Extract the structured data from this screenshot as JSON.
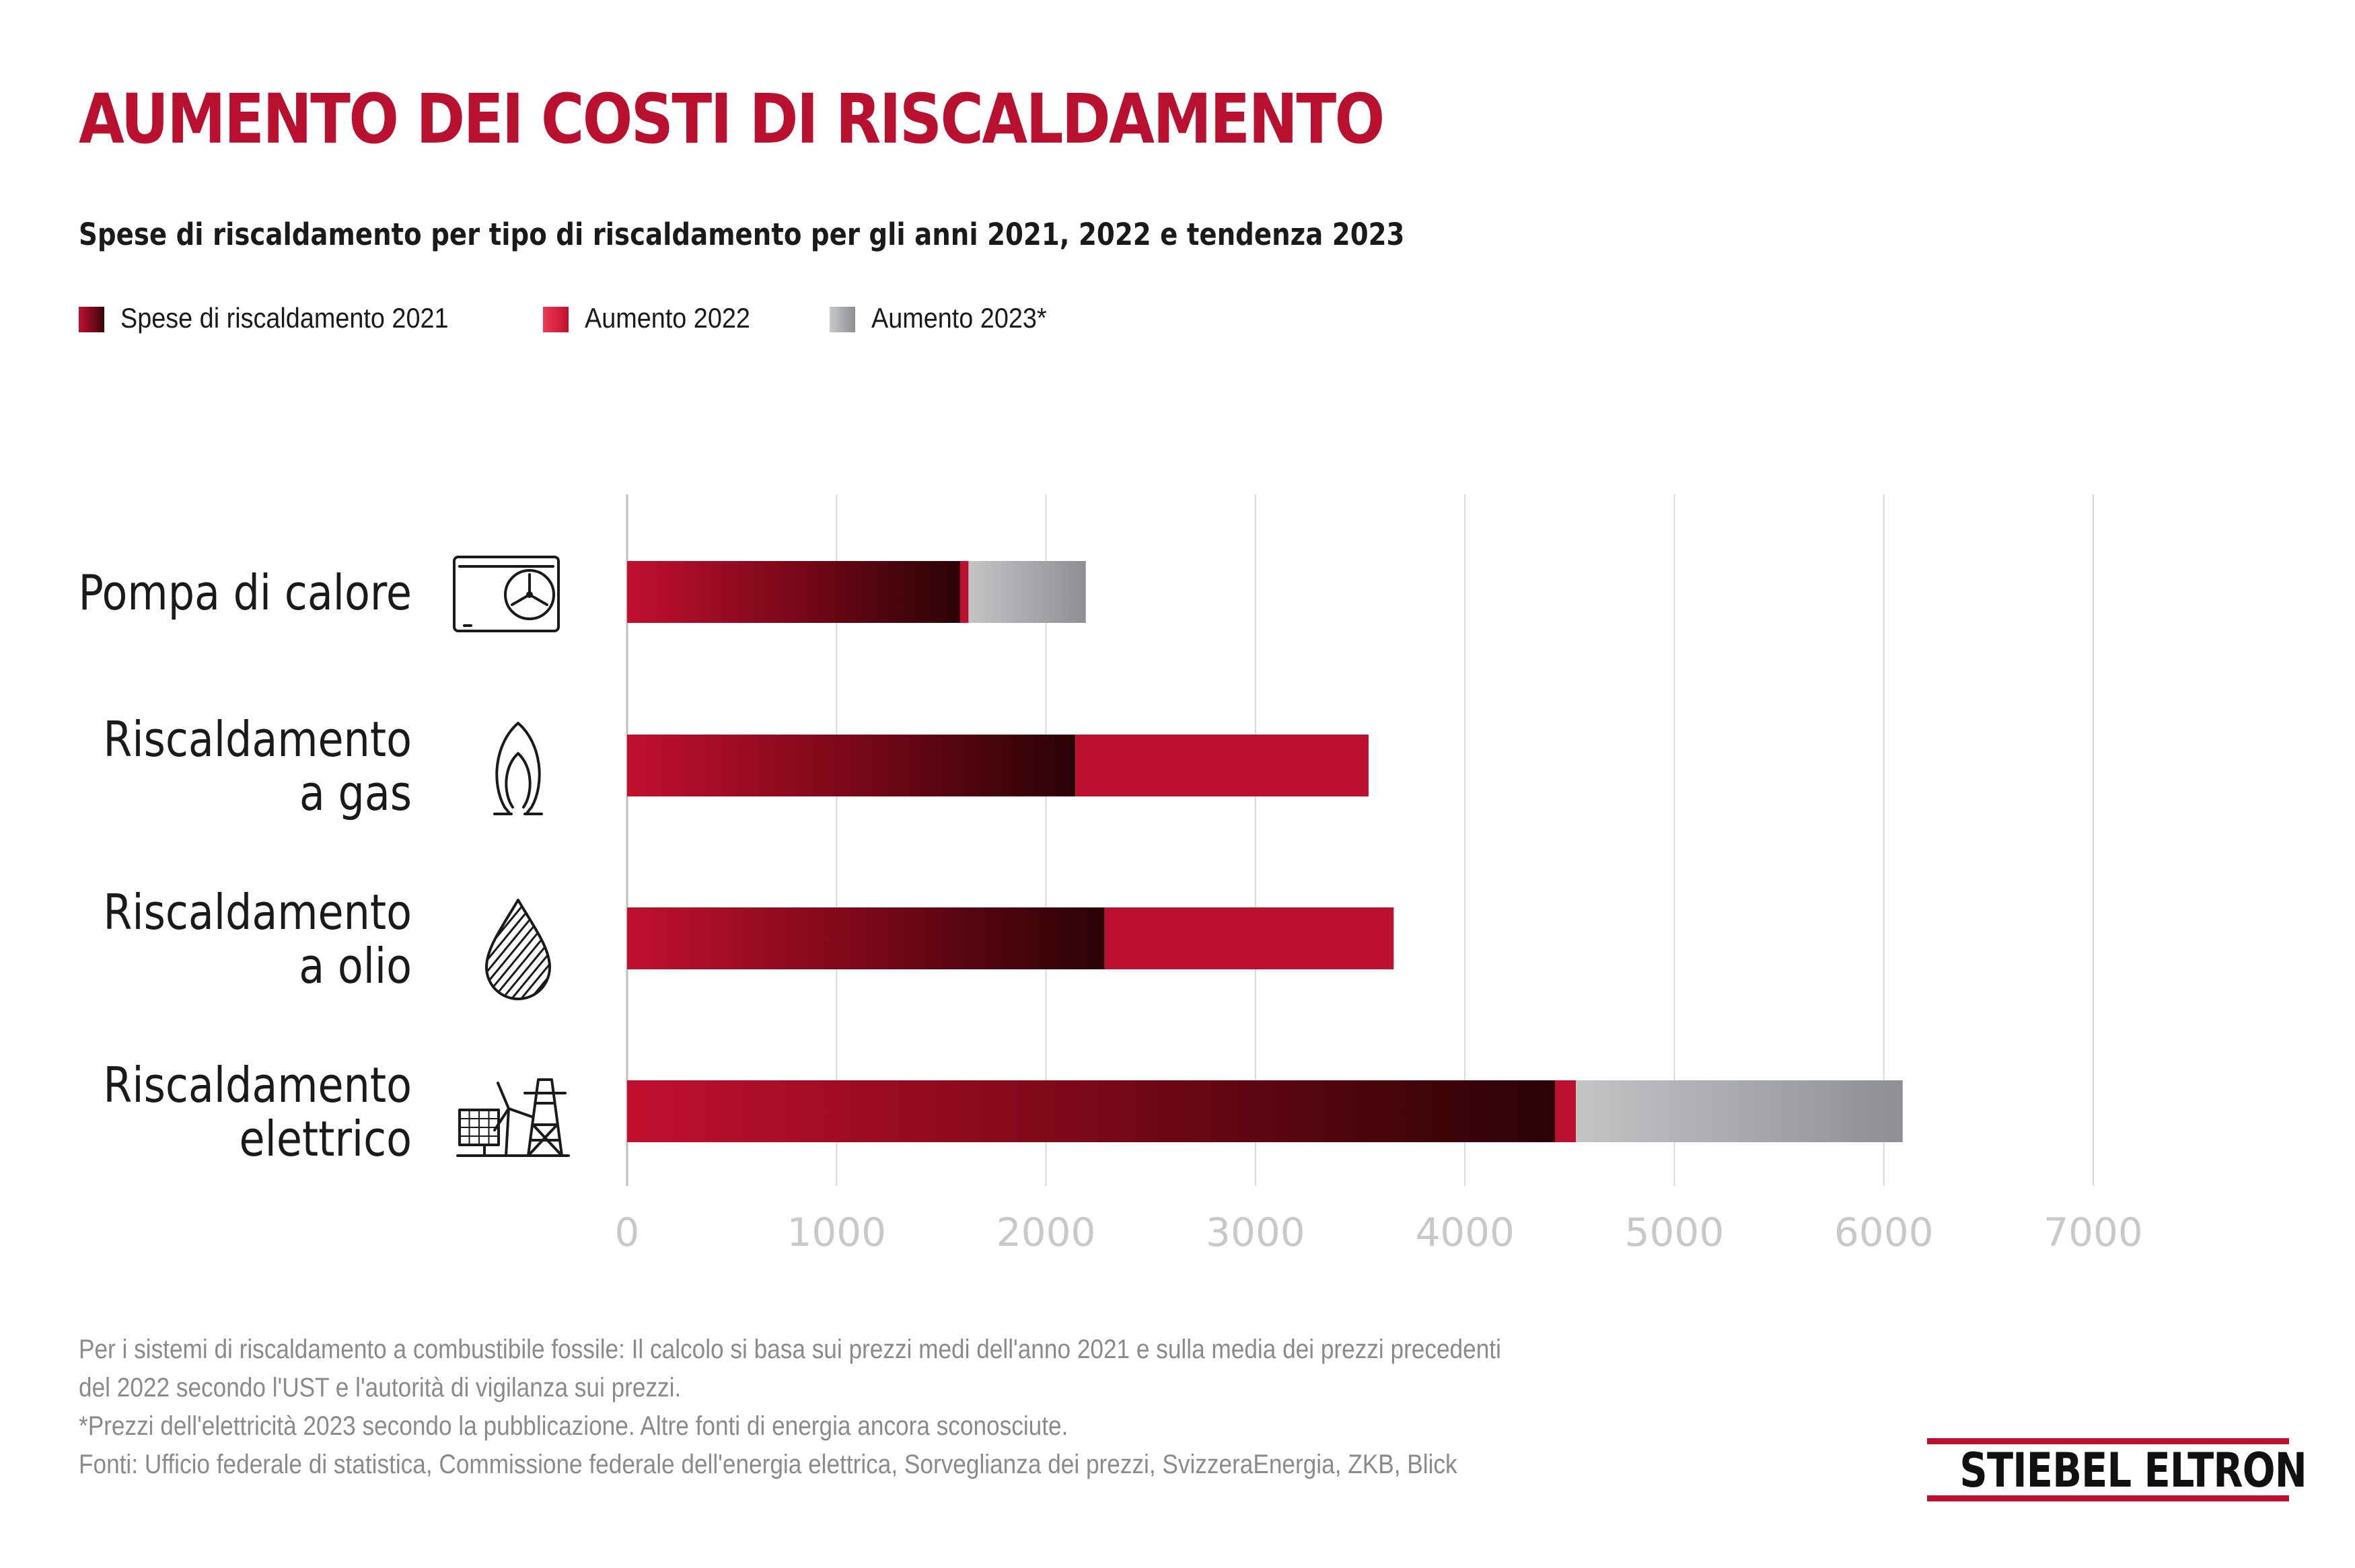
{
  "title": "AUMENTO DEI COSTI DI RISCALDAMENTO",
  "subtitle": "Spese di riscaldamento per tipo di riscaldamento per gli anni 2021, 2022 e tendenza 2023",
  "legend": [
    {
      "label": "Spese di riscaldamento 2021",
      "color": "#8a0a1e"
    },
    {
      "label": "Aumento 2022",
      "color": "#d2123a"
    },
    {
      "label": "Aumento 2023*",
      "color": "#9a9a9e"
    }
  ],
  "chart_data": {
    "type": "bar",
    "orientation": "horizontal",
    "stacked": true,
    "categories": [
      {
        "lines": [
          "Pompa di calore"
        ],
        "icon": "heat-pump-icon"
      },
      {
        "lines": [
          "Riscaldamento",
          "a gas"
        ],
        "icon": "gas-flame-icon"
      },
      {
        "lines": [
          "Riscaldamento",
          "a olio"
        ],
        "icon": "oil-drop-icon"
      },
      {
        "lines": [
          "Riscaldamento",
          "elettrico"
        ],
        "icon": "solar-pylon-icon"
      }
    ],
    "series": [
      {
        "name": "Spese di riscaldamento 2021",
        "values": [
          1590,
          2140,
          2280,
          4430
        ]
      },
      {
        "name": "Aumento 2022",
        "values": [
          40,
          1400,
          1380,
          100
        ]
      },
      {
        "name": "Aumento 2023*",
        "values": [
          560,
          0,
          0,
          1560
        ]
      }
    ],
    "xlim": [
      0,
      7000
    ],
    "ticks": [
      0,
      1000,
      2000,
      3000,
      4000,
      5000,
      6000,
      7000
    ],
    "grid": true,
    "legend_position": "top-left",
    "colors": {
      "2021_start": "#c1102f",
      "2021_end": "#2a0306",
      "2022": "#bd0f30",
      "2023_start": "#c4c4c6",
      "2023_end": "#8d8f94",
      "grid": "#d9d9d9",
      "tick": "#c8c8c8"
    }
  },
  "footnotes": [
    "Per i sistemi di riscaldamento a combustibile fossile: Il calcolo si basa sui prezzi medi dell'anno 2021 e sulla media dei prezzi precedenti",
    "del 2022 secondo l'UST e l'autorità di vigilanza sui prezzi.",
    "*Prezzi dell'elettricità 2023 secondo la pubblicazione. Altre fonti di energia ancora sconosciute.",
    "Fonti: Ufficio federale di statistica, Commissione federale dell'energia elettrica, Sorveglianza dei prezzi, SvizzeraEnergia, ZKB, Blick"
  ],
  "logo": {
    "text": "STIEBEL ELTRON"
  }
}
